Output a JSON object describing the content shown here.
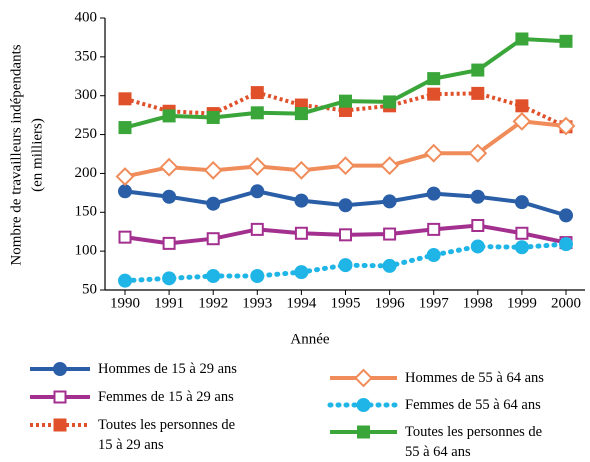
{
  "chart_data": {
    "type": "line",
    "x_label": "Année",
    "y_label": "Nombre de travailleurs indépendants",
    "y_label_unit": "(en milliers)",
    "categories": [
      "1990",
      "1991",
      "1992",
      "1993",
      "1994",
      "1995",
      "1996",
      "1997",
      "1998",
      "1999",
      "2000"
    ],
    "ylim": [
      50,
      400
    ],
    "yticks": [
      50,
      100,
      150,
      200,
      250,
      300,
      350,
      400
    ],
    "series": [
      {
        "name": "Hommes de 15 à 29 ans",
        "color": "#2a5fa8",
        "marker": "circle",
        "filled": true,
        "dashed": false,
        "values": [
          177,
          170,
          161,
          177,
          165,
          159,
          164,
          174,
          170,
          163,
          146
        ]
      },
      {
        "name": "Femmes de 15 à 29 ans",
        "color": "#a3308f",
        "marker": "square",
        "filled": false,
        "dashed": false,
        "values": [
          118,
          110,
          116,
          128,
          123,
          121,
          122,
          128,
          133,
          123,
          111
        ]
      },
      {
        "name": "Toutes les personnes de 15 à 29 ans",
        "color": "#e0502a",
        "marker": "square",
        "filled": true,
        "dashed": true,
        "values": [
          296,
          280,
          277,
          304,
          288,
          281,
          287,
          302,
          303,
          287,
          260
        ]
      },
      {
        "name": "Hommes de 55 à 64 ans",
        "color": "#f08c5a",
        "marker": "diamond",
        "filled": false,
        "dashed": false,
        "values": [
          196,
          208,
          204,
          209,
          204,
          210,
          210,
          226,
          226,
          267,
          261
        ]
      },
      {
        "name": "Femmes de 55 à 64 ans",
        "color": "#1fb5e6",
        "marker": "circle",
        "filled": true,
        "dashed": true,
        "values": [
          62,
          65,
          68,
          68,
          73,
          82,
          81,
          95,
          106,
          105,
          109
        ]
      },
      {
        "name": "Toutes les personnes de 55 à 64 ans",
        "color": "#3aa63a",
        "marker": "square",
        "filled": true,
        "dashed": false,
        "values": [
          259,
          274,
          272,
          278,
          277,
          293,
          292,
          322,
          333,
          373,
          370
        ]
      }
    ]
  }
}
